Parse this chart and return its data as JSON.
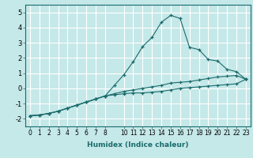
{
  "title": "",
  "xlabel": "Humidex (Indice chaleur)",
  "bg_color": "#c5e8e8",
  "grid_color": "#ffffff",
  "line_color": "#1a6b6b",
  "ylim": [
    -2.5,
    5.5
  ],
  "xlim": [
    -0.5,
    23.5
  ],
  "yticks": [
    -2,
    -1,
    0,
    1,
    2,
    3,
    4,
    5
  ],
  "xtick_vals": [
    0,
    1,
    2,
    3,
    4,
    5,
    6,
    7,
    8,
    10,
    11,
    12,
    13,
    14,
    15,
    16,
    17,
    18,
    19,
    20,
    21,
    22,
    23
  ],
  "x_values": [
    0,
    1,
    2,
    3,
    4,
    5,
    6,
    7,
    8,
    9,
    10,
    11,
    12,
    13,
    14,
    15,
    16,
    17,
    18,
    19,
    20,
    21,
    22,
    23
  ],
  "line1": [
    -1.8,
    -1.75,
    -1.65,
    -1.5,
    -1.3,
    -1.1,
    -0.9,
    -0.7,
    -0.5,
    0.2,
    0.9,
    1.75,
    2.75,
    3.35,
    4.35,
    4.8,
    4.6,
    2.7,
    2.55,
    1.9,
    1.8,
    1.25,
    1.1,
    0.6
  ],
  "line2": [
    -1.8,
    -1.75,
    -1.65,
    -1.5,
    -1.3,
    -1.1,
    -0.9,
    -0.7,
    -0.5,
    -0.35,
    -0.2,
    -0.1,
    0.0,
    0.1,
    0.2,
    0.35,
    0.4,
    0.45,
    0.55,
    0.65,
    0.75,
    0.8,
    0.85,
    0.6
  ],
  "line3": [
    -1.8,
    -1.75,
    -1.65,
    -1.5,
    -1.3,
    -1.1,
    -0.9,
    -0.7,
    -0.5,
    -0.42,
    -0.35,
    -0.3,
    -0.3,
    -0.25,
    -0.2,
    -0.1,
    0.0,
    0.05,
    0.1,
    0.15,
    0.2,
    0.25,
    0.3,
    0.6
  ],
  "xlabel_fontsize": 6.5,
  "tick_fontsize": 5.5,
  "ytick_fontsize": 6.0
}
